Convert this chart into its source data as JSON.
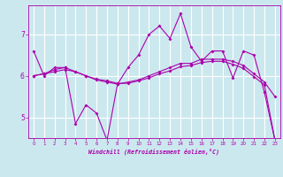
{
  "xlabel": "Windchill (Refroidissement éolien,°C)",
  "background_color": "#cce8ef",
  "grid_color": "#ffffff",
  "line_color": "#aa00aa",
  "x_ticks": [
    0,
    1,
    2,
    3,
    4,
    5,
    6,
    7,
    8,
    9,
    10,
    11,
    12,
    13,
    14,
    15,
    16,
    17,
    18,
    19,
    20,
    21,
    22,
    23
  ],
  "y_ticks": [
    5,
    6,
    7
  ],
  "xlim": [
    -0.5,
    23.5
  ],
  "ylim": [
    4.5,
    7.7
  ],
  "series1_x": [
    0,
    1,
    2,
    3,
    4,
    5,
    6,
    7,
    8,
    9,
    10,
    11,
    12,
    13,
    14,
    15,
    16,
    17,
    18,
    19,
    20,
    21,
    22,
    23
  ],
  "series1_y": [
    6.6,
    6.0,
    6.2,
    6.2,
    4.85,
    5.3,
    5.1,
    4.45,
    5.8,
    6.2,
    6.5,
    7.0,
    7.2,
    6.9,
    7.5,
    6.7,
    6.35,
    6.6,
    6.6,
    5.95,
    6.6,
    6.5,
    5.6,
    4.45
  ],
  "series2_x": [
    0,
    1,
    2,
    3,
    4,
    5,
    6,
    7,
    8,
    9,
    10,
    11,
    12,
    13,
    14,
    15,
    16,
    17,
    18,
    19,
    20,
    21,
    22,
    23
  ],
  "series2_y": [
    6.0,
    6.05,
    6.15,
    6.2,
    6.1,
    6.0,
    5.9,
    5.85,
    5.8,
    5.85,
    5.9,
    6.0,
    6.1,
    6.2,
    6.3,
    6.3,
    6.4,
    6.4,
    6.4,
    6.35,
    6.25,
    6.05,
    5.85,
    5.5
  ],
  "series3_x": [
    0,
    1,
    2,
    3,
    4,
    5,
    6,
    7,
    8,
    9,
    10,
    11,
    12,
    13,
    14,
    15,
    16,
    17,
    18,
    19,
    20,
    21,
    22,
    23
  ],
  "series3_y": [
    6.0,
    6.05,
    6.1,
    6.15,
    6.1,
    6.0,
    5.92,
    5.88,
    5.82,
    5.82,
    5.88,
    5.95,
    6.05,
    6.12,
    6.22,
    6.25,
    6.32,
    6.35,
    6.35,
    6.28,
    6.18,
    5.98,
    5.78,
    4.45
  ]
}
